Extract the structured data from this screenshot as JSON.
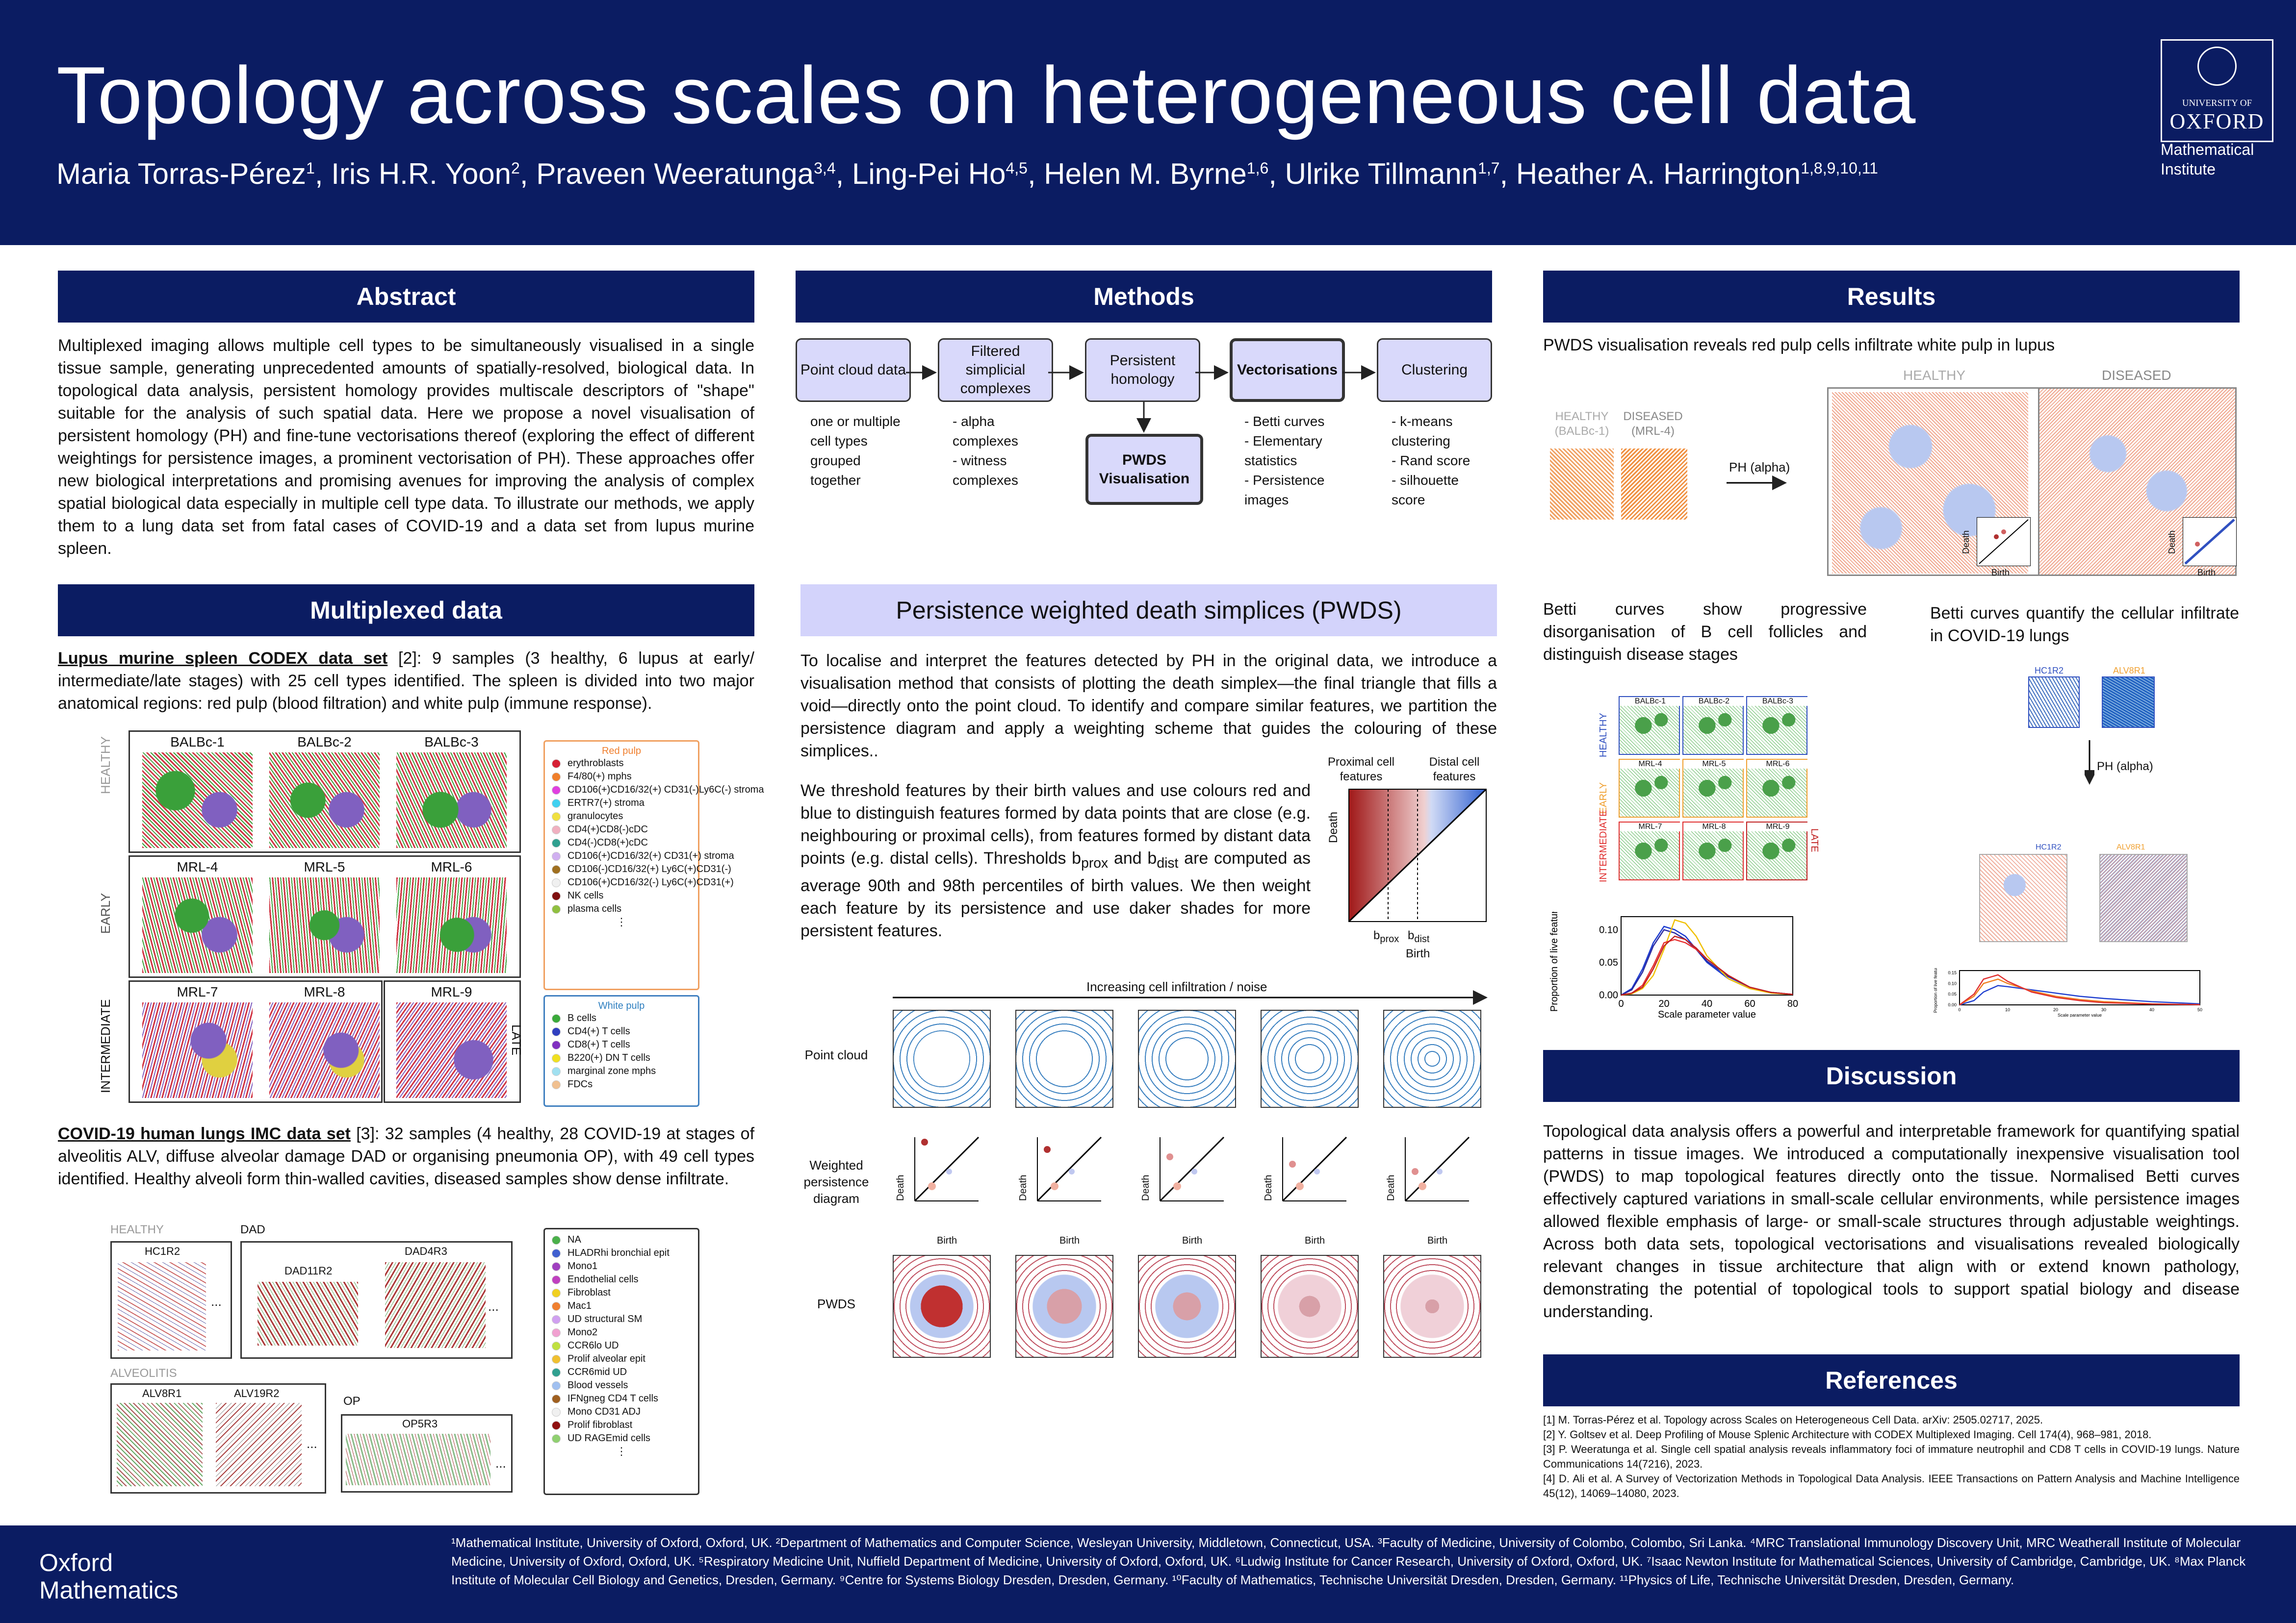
{
  "header": {
    "title": "Topology across scales on heterogeneous cell data",
    "authors": [
      {
        "name": "Maria Torras-Pérez",
        "sup": "1"
      },
      {
        "name": "Iris H.R. Yoon",
        "sup": "2"
      },
      {
        "name": "Praveen Weeratunga",
        "sup": "3,4"
      },
      {
        "name": "Ling-Pei Ho",
        "sup": "4,5"
      },
      {
        "name": "Helen M. Byrne",
        "sup": "1,6"
      },
      {
        "name": "Ulrike Tillmann",
        "sup": "1,7"
      },
      {
        "name": "Heather A. Harrington",
        "sup": "1,8,9,10,11"
      }
    ],
    "logo_university": "UNIVERSITY OF",
    "logo_name": "OXFORD",
    "institute_line1": "Mathematical",
    "institute_line2": "Institute"
  },
  "abstract": {
    "heading": "Abstract",
    "text": "Multiplexed imaging allows multiple cell types to be simultaneously visualised in a single tissue sample, generating unprecedented amounts of spatially-resolved, biological data. In topological data analysis, persistent homology provides multiscale descriptors of \"shape\" suitable for the analysis of such spatial data. Here we propose a novel visualisation of persistent homology (PH) and fine-tune vectorisations thereof (exploring the effect of different weightings for persistence images, a prominent vectorisation of PH). These approaches offer new biological interpretations and promising avenues for improving the analysis of complex spatial biological data especially in multiple cell type data. To illustrate our methods, we apply them to a lung data set from fatal cases of COVID-19 and a data set from lupus murine spleen."
  },
  "multiplexed": {
    "heading": "Multiplexed data",
    "lupus_title": "Lupus murine spleen CODEX data set",
    "lupus_ref": "[2]",
    "lupus_text": ": 9 samples (3 healthy, 6 lupus at early/ intermediate/late stages) with 25 cell types identified. The spleen is divided into two major anatomical regions: red pulp (blood filtration) and white pulp (immune response).",
    "row_labels": [
      "HEALTHY",
      "EARLY",
      "INTERMEDIATE"
    ],
    "late_label": "LATE",
    "samples": [
      "BALBc-1",
      "BALBc-2",
      "BALBc-3",
      "MRL-4",
      "MRL-5",
      "MRL-6",
      "MRL-7",
      "MRL-8",
      "MRL-9"
    ],
    "red_pulp_title": "Red pulp",
    "red_pulp": [
      {
        "label": "erythroblasts",
        "color": "#d62035"
      },
      {
        "label": "F4/80(+) mphs",
        "color": "#f07f2b"
      },
      {
        "label": "CD106(+)CD16/32(+) CD31(-)Ly6C(-) stroma",
        "color": "#e040e0"
      },
      {
        "label": "ERTR7(+) stroma",
        "color": "#40d0f0"
      },
      {
        "label": "granulocytes",
        "color": "#f0e040"
      },
      {
        "label": "CD4(+)CD8(-)cDC",
        "color": "#f0b0c0"
      },
      {
        "label": "CD4(-)CD8(+)cDC",
        "color": "#30a090"
      },
      {
        "label": "CD106(+)CD16/32(+) CD31(+) stroma",
        "color": "#d0b0f0"
      },
      {
        "label": "CD106(-)CD16/32(+) Ly6C(+)CD31(-)",
        "color": "#a07020"
      },
      {
        "label": "CD106(+)CD16/32(-) Ly6C(+)CD31(+)",
        "color": "#f0f0f0"
      },
      {
        "label": "NK cells",
        "color": "#801010"
      },
      {
        "label": "plasma cells",
        "color": "#90c040"
      }
    ],
    "white_pulp_title": "White pulp",
    "white_pulp": [
      {
        "label": "B cells",
        "color": "#3aaa3a"
      },
      {
        "label": "CD4(+) T cells",
        "color": "#3040c0"
      },
      {
        "label": "CD8(+) T cells",
        "color": "#8030c0"
      },
      {
        "label": "B220(+) DN T cells",
        "color": "#f0e020"
      },
      {
        "label": "marginal zone mphs",
        "color": "#a0e0f0"
      },
      {
        "label": "FDCs",
        "color": "#f0c090"
      }
    ],
    "ellipsis": "⋮",
    "covid_title": "COVID-19 human lungs IMC data set",
    "covid_ref": "[3]",
    "covid_text": ": 32 samples (4 healthy, 28 COVID-19 at stages of alveolitis ALV, diffuse alveolar damage DAD or organising pneumonia OP), with 49 cell types identified. Healthy alveoli form thin-walled cavities, diseased samples show dense infiltrate.",
    "covid_groups": {
      "healthy": "HEALTHY",
      "dad": "DAD",
      "alveolitis": "ALVEOLITIS",
      "op": "OP"
    },
    "covid_samples": {
      "hc": "HC1R2",
      "dad1": "DAD11R2",
      "dad2": "DAD4R3",
      "alv1": "ALV8R1",
      "alv2": "ALV19R2",
      "op": "OP5R3"
    },
    "dots": "...",
    "covid_legend": [
      {
        "label": "NA",
        "color": "#4ab04a"
      },
      {
        "label": "HLADRhi bronchial epit",
        "color": "#4060d0"
      },
      {
        "label": "Mono1",
        "color": "#a040c0"
      },
      {
        "label": "Endothelial cells",
        "color": "#c040c0"
      },
      {
        "label": "Fibroblast",
        "color": "#f0d020"
      },
      {
        "label": "Mac1",
        "color": "#f08030"
      },
      {
        "label": "UD structural SM",
        "color": "#d0a0f0"
      },
      {
        "label": "Mono2",
        "color": "#f0a0d0"
      },
      {
        "label": "CCR6lo UD",
        "color": "#c0e040"
      },
      {
        "label": "Prolif alveolar epit",
        "color": "#f0c030"
      },
      {
        "label": "CCR6mid UD",
        "color": "#30a090"
      },
      {
        "label": "Blood vessels",
        "color": "#a0c0f0"
      },
      {
        "label": "IFNgneg CD4 T cells",
        "color": "#a06020"
      },
      {
        "label": "Mono CD31 ADJ",
        "color": "#f0f0f0"
      },
      {
        "label": "Prolif fibroblast",
        "color": "#901010"
      },
      {
        "label": "UD RAGEmid cells",
        "color": "#90d070"
      }
    ]
  },
  "methods": {
    "heading": "Methods",
    "steps": [
      {
        "label": "Point cloud data",
        "desc": "one or multiple cell types grouped together"
      },
      {
        "label": "Filtered simplicial complexes",
        "desc": "- alpha complexes\n- witness complexes"
      },
      {
        "label": "Persistent homology",
        "desc": ""
      },
      {
        "label": "Vectorisations",
        "desc": "- Betti curves\n- Elementary statistics\n- Persistence images"
      },
      {
        "label": "Clustering",
        "desc": "- k-means clustering\n- Rand score\n- silhouette score"
      }
    ],
    "pwds_box": "PWDS Visualisation"
  },
  "pwds": {
    "heading": "Persistence weighted death simplices (PWDS)",
    "p1": "To localise and interpret the features detected by PH in the original data, we introduce a visualisation method that consists of plotting the death simplex—the final triangle that fills a void—directly onto the point cloud. To identify and compare similar features, we partition the persistence diagram and apply a weighting scheme that guides the colouring of these simplices..",
    "p2": "We threshold features by their birth values and use colours red and blue to distinguish features formed by data points that are close (e.g. neighbouring or proximal cells), from features formed by distant data points (e.g. distal cells). Thresholds b",
    "p2_sub1": "prox",
    "p2_mid": " and b",
    "p2_sub2": "dist",
    "p2_end": " are computed as average 90th and 98th percentiles of birth values. We then weight each feature by its persistence and use daker shades for more persistent features.",
    "diag": {
      "proximal": "Proximal cell features",
      "distal": "Distal cell features",
      "death": "Death",
      "birth": "Birth",
      "bprox": "b",
      "bprox_sub": "prox",
      "bdist": "b",
      "bdist_sub": "dist"
    },
    "infiltration": "Increasing cell infiltration / noise",
    "row_point": "Point cloud",
    "row_weighted": "Weighted persistence diagram",
    "row_pwds": "PWDS",
    "mini_death": "Death",
    "mini_birth": "Birth"
  },
  "results": {
    "heading": "Results",
    "pwds_title": "PWDS visualisation reveals red pulp cells infiltrate white pulp in lupus",
    "healthy_small": "HEALTHY (BALBc-1)",
    "diseased_small": "DISEASED (MRL-4)",
    "ph_alpha": "PH (alpha)",
    "healthy_big": "HEALTHY",
    "diseased_big": "DISEASED",
    "death": "Death",
    "birth": "Birth",
    "betti_left": "Betti curves show progressive disorganisation of B cell follicles and distinguish disease stages",
    "betti_right": "Betti curves quantify the cellular infiltrate in COVID-19 lungs",
    "grid_rows": [
      "HEALTHY",
      "EARLY",
      "INTERMEDIATE"
    ],
    "grid_late": "LATE",
    "grid_samples": [
      "BALBc-1",
      "BALBc-2",
      "BALBc-3",
      "MRL-4",
      "MRL-5",
      "MRL-6",
      "MRL-7",
      "MRL-8",
      "MRL-9"
    ],
    "covid_small": [
      "HC1R2",
      "ALV8R1"
    ],
    "chart_ylabel": "Proportion of live features",
    "chart_xlabel": "Scale parameter value",
    "chart_xticks": [
      "0",
      "20",
      "40",
      "60",
      "80"
    ],
    "chart_yticks": [
      "0.00",
      "0.05",
      "0.10"
    ],
    "chart2_xticks": [
      "0",
      "10",
      "20",
      "30",
      "40",
      "50"
    ],
    "chart2_yticks": [
      "0.00",
      "0.05",
      "0.10",
      "0.15"
    ]
  },
  "chart_data": [
    {
      "type": "line",
      "title": "",
      "xlabel": "Scale parameter value",
      "ylabel": "Proportion of live features",
      "xlim": [
        0,
        80
      ],
      "ylim": [
        0,
        0.12
      ],
      "x": [
        0,
        5,
        10,
        15,
        20,
        25,
        30,
        35,
        40,
        50,
        60,
        70,
        80
      ],
      "series": [
        {
          "color": "#1a3ad0",
          "values": [
            0.0,
            0.01,
            0.04,
            0.08,
            0.105,
            0.1,
            0.09,
            0.07,
            0.05,
            0.025,
            0.01,
            0.004,
            0.001
          ]
        },
        {
          "color": "#2a2aa0",
          "values": [
            0.0,
            0.008,
            0.035,
            0.075,
            0.1,
            0.095,
            0.085,
            0.07,
            0.052,
            0.028,
            0.012,
            0.004,
            0.001
          ]
        },
        {
          "color": "#f0c000",
          "values": [
            0.0,
            0.002,
            0.01,
            0.03,
            0.07,
            0.115,
            0.11,
            0.09,
            0.06,
            0.025,
            0.01,
            0.003,
            0.001
          ]
        },
        {
          "color": "#e83030",
          "values": [
            0.0,
            0.003,
            0.015,
            0.045,
            0.08,
            0.085,
            0.08,
            0.07,
            0.055,
            0.03,
            0.012,
            0.004,
            0.001
          ]
        },
        {
          "color": "#c02020",
          "values": [
            0.0,
            0.003,
            0.012,
            0.04,
            0.075,
            0.09,
            0.085,
            0.072,
            0.055,
            0.03,
            0.012,
            0.004,
            0.001
          ]
        }
      ]
    },
    {
      "type": "line",
      "title": "",
      "xlabel": "Scale parameter value",
      "ylabel": "Proportion of live features",
      "xlim": [
        0,
        50
      ],
      "ylim": [
        0,
        0.16
      ],
      "x": [
        0,
        3,
        5,
        8,
        10,
        15,
        20,
        25,
        30,
        40,
        50
      ],
      "series": [
        {
          "color": "#2040d0",
          "values": [
            0.0,
            0.02,
            0.06,
            0.09,
            0.085,
            0.07,
            0.055,
            0.04,
            0.03,
            0.015,
            0.005
          ]
        },
        {
          "color": "#f08020",
          "values": [
            0.0,
            0.04,
            0.1,
            0.12,
            0.1,
            0.065,
            0.04,
            0.025,
            0.015,
            0.005,
            0.001
          ]
        },
        {
          "color": "#e03030",
          "values": [
            0.0,
            0.05,
            0.12,
            0.14,
            0.11,
            0.06,
            0.035,
            0.02,
            0.01,
            0.004,
            0.001
          ]
        }
      ]
    }
  ],
  "discussion": {
    "heading": "Discussion",
    "text": "Topological data analysis offers a powerful and interpretable framework for quantifying spatial patterns in tissue images. We introduced a computationally inexpensive visualisation tool (PWDS) to map topological features directly onto the tissue. Normalised Betti curves effectively captured variations in small-scale cellular environments, while persistence images allowed flexible emphasis of large- or small-scale structures through adjustable weightings. Across both data sets, topological vectorisations and visualisations revealed biologically relevant changes in tissue architecture that align with or extend known pathology, demonstrating the potential of topological tools to support spatial biology and disease understanding."
  },
  "references": {
    "heading": "References",
    "items": [
      "[1] M. Torras-Pérez et al. Topology across Scales on Heterogeneous Cell Data. arXiv: 2505.02717, 2025.",
      "[2] Y. Goltsev et al. Deep Profiling of Mouse Splenic Architecture with CODEX Multiplexed Imaging. Cell 174(4), 968–981, 2018.",
      "[3] P. Weeratunga et al. Single cell spatial analysis reveals inflammatory foci of immature neutrophil and CD8 T cells in COVID-19 lungs. Nature Communications 14(7216), 2023.",
      "[4] D. Ali et al. A Survey of Vectorization Methods in Topological Data Analysis. IEEE Transactions on Pattern Analysis and Machine Intelligence 45(12), 14069–14080, 2023."
    ]
  },
  "footer": {
    "brand_line1": "Oxford",
    "brand_line2": "Mathematics",
    "affiliations": "¹Mathematical Institute, University of Oxford, Oxford, UK. ²Department of Mathematics and Computer Science, Wesleyan University, Middletown, Connecticut, USA. ³Faculty of Medicine, University of Colombo, Colombo, Sri Lanka. ⁴MRC Translational Immunology Discovery Unit, MRC Weatherall Institute of Molecular Medicine, University of Oxford, Oxford, UK. ⁵Respiratory Medicine Unit, Nuffield Department of Medicine, University of Oxford, Oxford, UK. ⁶Ludwig Institute for Cancer Research, University of Oxford, Oxford, UK. ⁷Isaac Newton Institute for Mathematical Sciences, University of Cambridge, Cambridge, UK. ⁸Max Planck Institute of Molecular Cell Biology and Genetics, Dresden, Germany. ⁹Centre for Systems Biology Dresden, Dresden, Germany. ¹⁰Faculty of Mathematics, Technische Universität Dresden, Dresden, Germany. ¹¹Physics of Life, Technische Universität Dresden, Dresden, Germany."
  }
}
